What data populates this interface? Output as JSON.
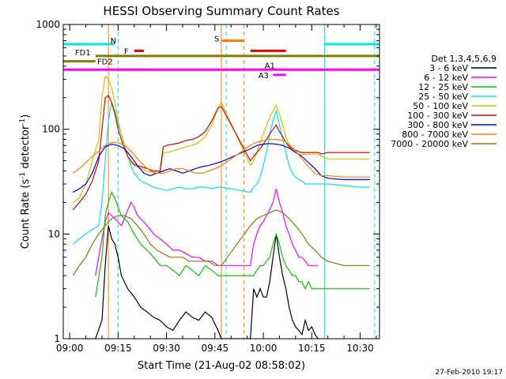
{
  "chart_data": {
    "type": "line",
    "title": "HESSI Observing Summary Count Rates",
    "xlabel": "Start Time (21-Aug-02 08:58:02)",
    "ylabel_main": "Count Rate (s",
    "ylabel_sup1": "-1",
    "ylabel_mid": " detector",
    "ylabel_sup2": "-1",
    "ylabel_end": ")",
    "x_unit": "minutes after 09:00",
    "xlim": [
      -2,
      96
    ],
    "ylim": [
      1,
      1000
    ],
    "y_scale": "log",
    "x_ticks": [
      {
        "label": "09:00",
        "value": 0
      },
      {
        "label": "09:15",
        "value": 15
      },
      {
        "label": "09:30",
        "value": 30
      },
      {
        "label": "09:45",
        "value": 45
      },
      {
        "label": "10:00",
        "value": 60
      },
      {
        "label": "10:15",
        "value": 75
      },
      {
        "label": "10:30",
        "value": 90
      }
    ],
    "y_ticks": [
      {
        "label": "1",
        "value": 1
      },
      {
        "label": "10",
        "value": 10
      },
      {
        "label": "100",
        "value": 100
      },
      {
        "label": "1000",
        "value": 1000
      }
    ],
    "legend_title": "Det 1,3,4,5,6,9",
    "legend_placement": "right",
    "footer": "27-Feb-2010 19:17",
    "series": [
      {
        "name": "3 - 6 keV",
        "color": "#000000",
        "x": [
          4,
          8,
          10,
          11,
          12,
          13,
          14,
          15,
          16,
          18,
          20,
          22,
          24,
          26,
          28,
          30,
          32,
          34,
          36,
          38,
          40,
          42,
          44,
          46,
          47,
          56,
          57,
          58,
          59,
          60,
          61,
          62,
          63,
          64,
          65,
          66,
          67,
          68,
          69,
          70,
          71,
          72,
          73,
          74,
          75,
          76,
          77
        ],
        "y": [
          1,
          1,
          1.5,
          5,
          12,
          9,
          8,
          6,
          4,
          3,
          2.5,
          2,
          1.8,
          1.6,
          1.5,
          1.3,
          1.2,
          1.5,
          1.8,
          1.6,
          1.5,
          1.8,
          1.6,
          1.2,
          1,
          1,
          3,
          2.5,
          3,
          2.5,
          2.5,
          3.5,
          6,
          10,
          6,
          4,
          3,
          2,
          1.5,
          1.3,
          1.2,
          1.1,
          1.5,
          1.2,
          1.3,
          1.1,
          1
        ]
      },
      {
        "name": "6 - 12 keV",
        "color": "#ff00ff",
        "x": [
          8,
          10,
          11,
          12,
          13,
          14,
          15,
          16,
          17,
          18,
          19,
          20,
          21,
          22,
          23,
          24,
          25,
          26,
          28,
          30,
          32,
          34,
          36,
          38,
          40,
          42,
          44,
          46,
          47,
          56,
          57,
          58,
          59,
          60,
          61,
          62,
          63,
          64,
          65,
          66,
          67,
          68,
          69,
          70,
          71,
          72,
          73,
          74,
          75,
          76,
          77
        ],
        "y": [
          4,
          9,
          13,
          16,
          15,
          14,
          13,
          12,
          14,
          17,
          20,
          18,
          15,
          14,
          13,
          12,
          11,
          10,
          9,
          8,
          7,
          7,
          6.5,
          6,
          6,
          5.5,
          5.5,
          5,
          5,
          5,
          8,
          10,
          12,
          13,
          15,
          17,
          20,
          27,
          20,
          16,
          12,
          10,
          8,
          7,
          6,
          6,
          5.5,
          5,
          5,
          5,
          5
        ]
      },
      {
        "name": "12 - 25 keV",
        "color": "#00c800",
        "x": [
          8,
          10,
          11,
          12,
          13,
          14,
          15,
          16,
          17,
          18,
          20,
          22,
          24,
          26,
          28,
          30,
          32,
          34,
          36,
          38,
          40,
          42,
          44,
          46,
          47,
          56,
          57,
          58,
          59,
          60,
          61,
          62,
          63,
          64,
          65,
          66,
          67,
          68,
          69,
          70,
          71,
          72,
          73,
          74,
          75,
          76,
          77,
          80,
          85,
          90,
          93
        ],
        "y": [
          2.5,
          6,
          15,
          20,
          25,
          22,
          18,
          15,
          14,
          13,
          10,
          8,
          7,
          6,
          5,
          5,
          4.5,
          4,
          5,
          4.5,
          4,
          5,
          4.5,
          4,
          4,
          4,
          4,
          4.5,
          5,
          5,
          5.5,
          6,
          8,
          10,
          8,
          6,
          5,
          4.5,
          4,
          4,
          3.5,
          3.5,
          3,
          3.5,
          3,
          3,
          3,
          3,
          3,
          3,
          3
        ]
      },
      {
        "name": "25 - 50 keV",
        "color": "#00e6e6",
        "x": [
          1,
          3,
          5,
          7,
          9,
          10,
          11,
          12,
          13,
          14,
          15,
          16,
          17,
          18,
          19,
          20,
          22,
          24,
          26,
          28,
          30,
          32,
          34,
          36,
          38,
          40,
          42,
          44,
          46,
          47,
          56,
          57,
          58,
          59,
          60,
          61,
          62,
          63,
          64,
          65,
          66,
          67,
          68,
          69,
          70,
          71,
          72,
          73,
          74,
          75,
          76,
          77,
          78,
          80,
          85,
          90,
          93
        ],
        "y": [
          8,
          9,
          10,
          11,
          12,
          20,
          50,
          120,
          180,
          150,
          110,
          90,
          70,
          55,
          45,
          38,
          32,
          30,
          28,
          27,
          26,
          27,
          28,
          27,
          27,
          28,
          28,
          27,
          28,
          28,
          25,
          28,
          30,
          35,
          45,
          60,
          90,
          120,
          150,
          110,
          80,
          60,
          45,
          38,
          35,
          33,
          32,
          30,
          30,
          30,
          30,
          30,
          30,
          30,
          29,
          28,
          28
        ]
      },
      {
        "name": "50 - 100 keV",
        "color": "#c8c800",
        "x": [
          1,
          3,
          5,
          7,
          9,
          10,
          11,
          12,
          13,
          14,
          15,
          16,
          17,
          18,
          19,
          20,
          22,
          24,
          26,
          28,
          29,
          30,
          32,
          34,
          36,
          38,
          40,
          42,
          44,
          46,
          47,
          56,
          57,
          58,
          59,
          60,
          61,
          62,
          63,
          64,
          65,
          66,
          67,
          68,
          69,
          70,
          71,
          72,
          73,
          74,
          75,
          76,
          77,
          78,
          80,
          85,
          90,
          93
        ],
        "y": [
          20,
          22,
          30,
          50,
          80,
          200,
          320,
          300,
          250,
          180,
          120,
          90,
          70,
          55,
          48,
          45,
          42,
          40,
          38,
          38,
          60,
          60,
          62,
          65,
          68,
          70,
          75,
          85,
          110,
          160,
          180,
          45,
          50,
          60,
          75,
          90,
          110,
          130,
          150,
          170,
          140,
          110,
          85,
          70,
          65,
          60,
          58,
          58,
          58,
          58,
          58,
          58,
          58,
          55,
          52,
          52,
          52,
          52
        ]
      },
      {
        "name": "100 - 300 keV",
        "color": "#e60000",
        "x": [
          1,
          3,
          5,
          7,
          9,
          10,
          11,
          12,
          13,
          14,
          15,
          16,
          17,
          18,
          19,
          20,
          22,
          24,
          26,
          28,
          29,
          30,
          32,
          34,
          36,
          38,
          40,
          42,
          44,
          46,
          47,
          56,
          57,
          58,
          59,
          60,
          61,
          62,
          63,
          64,
          65,
          66,
          67,
          68,
          69,
          70,
          71,
          72,
          73,
          74,
          75,
          76,
          77,
          78,
          80,
          85,
          90,
          93
        ],
        "y": [
          17,
          20,
          24,
          32,
          50,
          100,
          200,
          210,
          180,
          140,
          100,
          80,
          65,
          55,
          50,
          46,
          44,
          42,
          40,
          40,
          68,
          70,
          72,
          74,
          78,
          80,
          85,
          95,
          120,
          160,
          165,
          50,
          55,
          60,
          65,
          72,
          80,
          90,
          100,
          110,
          95,
          85,
          75,
          68,
          65,
          63,
          61,
          60,
          60,
          60,
          60,
          60,
          60,
          58,
          60,
          60,
          60,
          60
        ]
      },
      {
        "name": "300 - 800 keV",
        "color": "#0000e6",
        "x": [
          1,
          3,
          5,
          7,
          9,
          11,
          13,
          15,
          17,
          19,
          21,
          23,
          25,
          27,
          29,
          31,
          33,
          35,
          37,
          39,
          41,
          43,
          45,
          47,
          56,
          58,
          60,
          62,
          64,
          66,
          68,
          70,
          72,
          74,
          76,
          78,
          80,
          85,
          90,
          93
        ],
        "y": [
          25,
          27,
          30,
          38,
          55,
          68,
          72,
          70,
          65,
          55,
          45,
          38,
          36,
          38,
          40,
          42,
          40,
          38,
          40,
          42,
          44,
          45,
          47,
          49,
          65,
          70,
          72,
          73,
          72,
          70,
          66,
          60,
          55,
          48,
          42,
          36,
          34,
          33,
          33,
          33
        ]
      },
      {
        "name": "800 - 7000 keV",
        "color": "#ff8000",
        "x": [
          1,
          3,
          5,
          7,
          9,
          11,
          13,
          15,
          17,
          19,
          21,
          23,
          25,
          27,
          29,
          31,
          33,
          35,
          37,
          39,
          41,
          43,
          45,
          47,
          56,
          58,
          60,
          62,
          64,
          66,
          68,
          70,
          72,
          74,
          76,
          78,
          80,
          85,
          90,
          93
        ],
        "y": [
          38,
          42,
          48,
          55,
          62,
          70,
          75,
          74,
          70,
          62,
          52,
          45,
          40,
          38,
          38,
          40,
          42,
          42,
          40,
          38,
          38,
          40,
          42,
          45,
          70,
          75,
          78,
          80,
          80,
          78,
          72,
          62,
          52,
          44,
          38,
          36,
          36,
          35,
          35,
          35
        ]
      },
      {
        "name": "7000 - 20000 keV",
        "color": "#808000",
        "x": [
          1,
          3,
          5,
          7,
          9,
          11,
          13,
          15,
          17,
          19,
          21,
          23,
          25,
          27,
          29,
          31,
          33,
          35,
          37,
          39,
          41,
          43,
          45,
          47,
          56,
          58,
          60,
          62,
          64,
          66,
          68,
          70,
          72,
          74,
          76,
          78,
          80,
          85,
          90,
          93
        ],
        "y": [
          4,
          5,
          6,
          8,
          10,
          12,
          14,
          15,
          15,
          14,
          12,
          10,
          8,
          7,
          6.5,
          6,
          6,
          6,
          5.5,
          5.5,
          5.5,
          5.5,
          5,
          5,
          12,
          14,
          15,
          16,
          17,
          16,
          14,
          12,
          10,
          8,
          7,
          6,
          5.5,
          5,
          5,
          5
        ]
      }
    ],
    "annotations": {
      "S": {
        "label": "S",
        "x": [
          47,
          54
        ],
        "y": 700,
        "color": "#ff8000"
      },
      "N": {
        "label": "N",
        "x_segments": [
          [
            -2,
            14
          ],
          [
            79,
            96
          ]
        ],
        "y": 650,
        "color": "#00e6e6"
      },
      "F": {
        "label": "F",
        "x_segments": [
          [
            20,
            23
          ],
          [
            56,
            67
          ]
        ],
        "y": 560,
        "color": "#e60000"
      },
      "FD1": {
        "label": "FD1",
        "x": [
          8,
          96
        ],
        "y": 500,
        "color": "#808000"
      },
      "FD2": {
        "label": "FD2",
        "x": [
          -2,
          8
        ],
        "y": 445,
        "color": "#808000"
      },
      "A1": {
        "label": "A1",
        "x": [
          -2,
          96
        ],
        "y": 370,
        "color": "#ff00ff"
      },
      "A3": {
        "label": "A3",
        "x": [
          63,
          67
        ],
        "y": 330,
        "color": "#ff00ff"
      }
    },
    "vertical_lines": [
      {
        "x": 12,
        "color": "#ff8000",
        "style": "solid"
      },
      {
        "x": 15,
        "color": "#00e6e6",
        "style": "dashed"
      },
      {
        "x": 47,
        "color": "#ff8000",
        "style": "solid"
      },
      {
        "x": 48.5,
        "color": "#00e6e6",
        "style": "dashed"
      },
      {
        "x": 54,
        "color": "#ff8000",
        "style": "dashed"
      },
      {
        "x": 79,
        "color": "#00e6e6",
        "style": "solid"
      },
      {
        "x": 94.5,
        "color": "#00e6e6",
        "style": "dashed"
      }
    ]
  }
}
